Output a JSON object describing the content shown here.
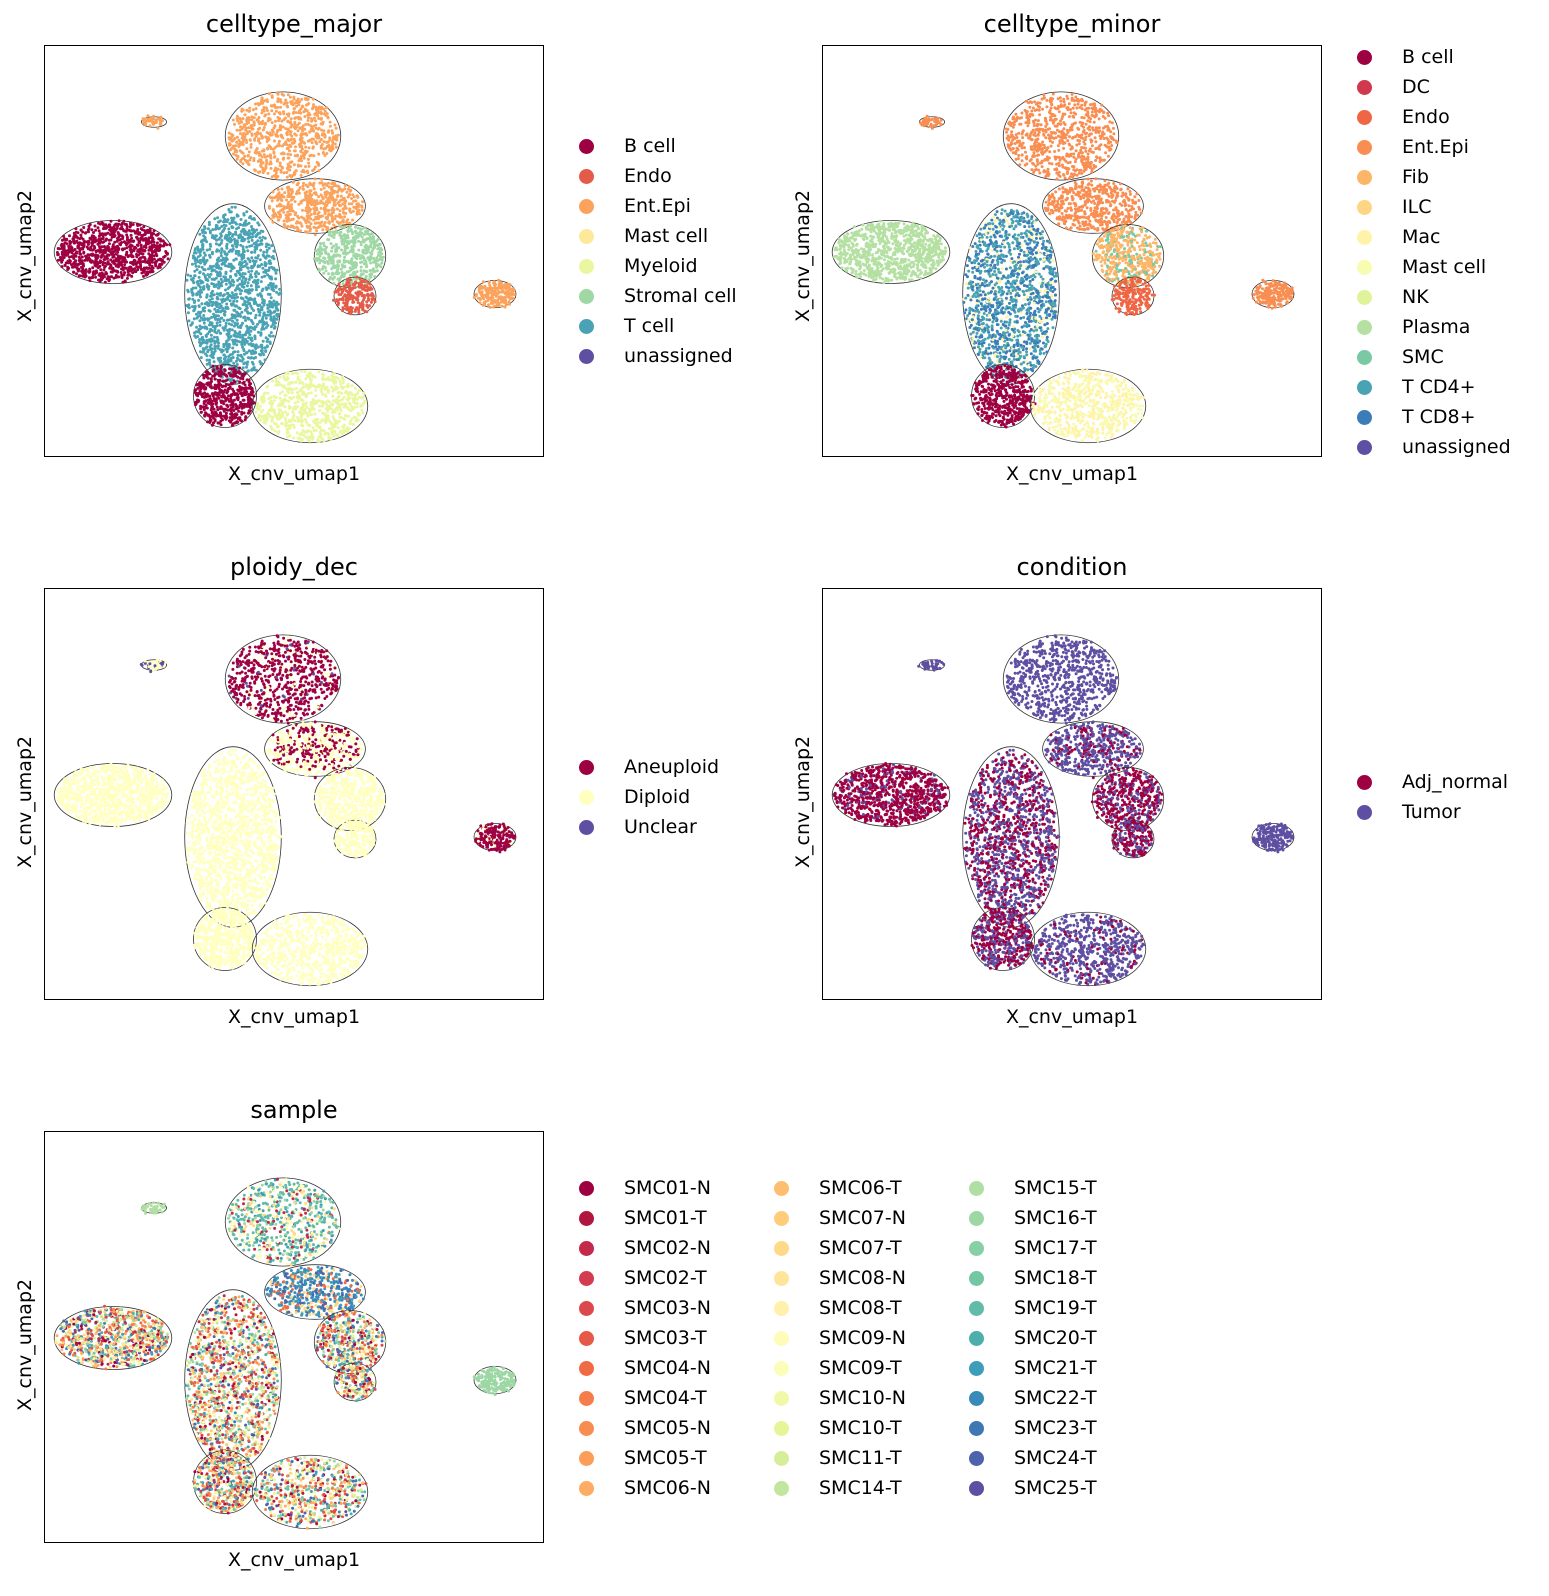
{
  "panels": [
    {
      "title": "celltype_major",
      "xlabel": "X_cnv_umap1",
      "ylabel": "X_cnv_umap2",
      "legend": [
        {
          "label": "B cell",
          "color": "#9e0142"
        },
        {
          "label": "Endo",
          "color": "#e45c49"
        },
        {
          "label": "Ent.Epi",
          "color": "#fba35c"
        },
        {
          "label": "Mast cell",
          "color": "#fde999"
        },
        {
          "label": "Myeloid",
          "color": "#eaf79e"
        },
        {
          "label": "Stromal cell",
          "color": "#9fd8a4"
        },
        {
          "label": "T cell",
          "color": "#4aa3b4"
        },
        {
          "label": "unassigned",
          "color": "#5e4fa2"
        }
      ]
    },
    {
      "title": "celltype_minor",
      "xlabel": "X_cnv_umap1",
      "ylabel": "X_cnv_umap2",
      "legend": [
        {
          "label": "B cell",
          "color": "#9e0142"
        },
        {
          "label": "DC",
          "color": "#d0384e"
        },
        {
          "label": "Endo",
          "color": "#ef6645"
        },
        {
          "label": "Ent.Epi",
          "color": "#f98e52"
        },
        {
          "label": "Fib",
          "color": "#fdb567"
        },
        {
          "label": "ILC",
          "color": "#fed683"
        },
        {
          "label": "Mac",
          "color": "#fff3aa"
        },
        {
          "label": "Mast cell",
          "color": "#f7fcb1"
        },
        {
          "label": "NK",
          "color": "#e0f29a"
        },
        {
          "label": "Plasma",
          "color": "#b4e0a2"
        },
        {
          "label": "SMC",
          "color": "#79c9a5"
        },
        {
          "label": "T CD4+",
          "color": "#4aa3b2"
        },
        {
          "label": "T CD8+",
          "color": "#3b7cb9"
        },
        {
          "label": "unassigned",
          "color": "#5e4fa2"
        }
      ]
    },
    {
      "title": "ploidy_dec",
      "xlabel": "X_cnv_umap1",
      "ylabel": "X_cnv_umap2",
      "legend": [
        {
          "label": "Aneuploid",
          "color": "#9e0142"
        },
        {
          "label": "Diploid",
          "color": "#ffffbf"
        },
        {
          "label": "Unclear",
          "color": "#5e4fa2"
        }
      ]
    },
    {
      "title": "condition",
      "xlabel": "X_cnv_umap1",
      "ylabel": "X_cnv_umap2",
      "legend": [
        {
          "label": "Adj_normal",
          "color": "#9e0142"
        },
        {
          "label": "Tumor",
          "color": "#5e4fa2"
        }
      ]
    },
    {
      "title": "sample",
      "xlabel": "X_cnv_umap1",
      "ylabel": "X_cnv_umap2",
      "legend": [
        {
          "label": "SMC01-N",
          "color": "#9e0142"
        },
        {
          "label": "SMC01-T",
          "color": "#b0173f"
        },
        {
          "label": "SMC02-N",
          "color": "#c2294a"
        },
        {
          "label": "SMC02-T",
          "color": "#d33c4e"
        },
        {
          "label": "SMC03-N",
          "color": "#dc494c"
        },
        {
          "label": "SMC03-T",
          "color": "#e65948"
        },
        {
          "label": "SMC04-N",
          "color": "#f06b45"
        },
        {
          "label": "SMC04-T",
          "color": "#f57d4a"
        },
        {
          "label": "SMC05-N",
          "color": "#f88d52"
        },
        {
          "label": "SMC05-T",
          "color": "#fb9e5a"
        },
        {
          "label": "SMC06-N",
          "color": "#fdad63"
        },
        {
          "label": "SMC06-T",
          "color": "#fdbe6f"
        },
        {
          "label": "SMC07-N",
          "color": "#fecc7b"
        },
        {
          "label": "SMC07-T",
          "color": "#fed98a"
        },
        {
          "label": "SMC08-N",
          "color": "#fee59a"
        },
        {
          "label": "SMC08-T",
          "color": "#fff0ab"
        },
        {
          "label": "SMC09-N",
          "color": "#fffbb9"
        },
        {
          "label": "SMC09-T",
          "color": "#fbfdb9"
        },
        {
          "label": "SMC10-N",
          "color": "#f1f9a9"
        },
        {
          "label": "SMC10-T",
          "color": "#e6f598"
        },
        {
          "label": "SMC11-T",
          "color": "#d6ee9b"
        },
        {
          "label": "SMC14-T",
          "color": "#c3e69f"
        },
        {
          "label": "SMC15-T",
          "color": "#b0dfa3"
        },
        {
          "label": "SMC16-T",
          "color": "#9cd7a4"
        },
        {
          "label": "SMC17-T",
          "color": "#87cfa4"
        },
        {
          "label": "SMC18-T",
          "color": "#73c7a5"
        },
        {
          "label": "SMC19-T",
          "color": "#61bba8"
        },
        {
          "label": "SMC20-T",
          "color": "#4eaeab"
        },
        {
          "label": "SMC21-T",
          "color": "#3e9dba"
        },
        {
          "label": "SMC22-T",
          "color": "#388ab8"
        },
        {
          "label": "SMC23-T",
          "color": "#3f76b4"
        },
        {
          "label": "SMC24-T",
          "color": "#4d63ab"
        },
        {
          "label": "SMC25-T",
          "color": "#5e4fa2"
        }
      ]
    }
  ],
  "chart_data": [
    {
      "type": "scatter",
      "title": "celltype_major",
      "xlabel": "X_cnv_umap1",
      "ylabel": "X_cnv_umap2",
      "ticks": "none",
      "legend_placement": "right",
      "categories": [
        "B cell",
        "Endo",
        "Ent.Epi",
        "Mast cell",
        "Myeloid",
        "Stromal cell",
        "T cell",
        "unassigned"
      ]
    },
    {
      "type": "scatter",
      "title": "celltype_minor",
      "xlabel": "X_cnv_umap1",
      "ylabel": "X_cnv_umap2",
      "ticks": "none",
      "legend_placement": "right",
      "categories": [
        "B cell",
        "DC",
        "Endo",
        "Ent.Epi",
        "Fib",
        "ILC",
        "Mac",
        "Mast cell",
        "NK",
        "Plasma",
        "SMC",
        "T CD4+",
        "T CD8+",
        "unassigned"
      ]
    },
    {
      "type": "scatter",
      "title": "ploidy_dec",
      "xlabel": "X_cnv_umap1",
      "ylabel": "X_cnv_umap2",
      "ticks": "none",
      "legend_placement": "right",
      "categories": [
        "Aneuploid",
        "Diploid",
        "Unclear"
      ]
    },
    {
      "type": "scatter",
      "title": "condition",
      "xlabel": "X_cnv_umap1",
      "ylabel": "X_cnv_umap2",
      "ticks": "none",
      "legend_placement": "right",
      "categories": [
        "Adj_normal",
        "Tumor"
      ]
    },
    {
      "type": "scatter",
      "title": "sample",
      "xlabel": "X_cnv_umap1",
      "ylabel": "X_cnv_umap2",
      "ticks": "none",
      "legend_placement": "right",
      "categories": [
        "SMC01-N",
        "SMC01-T",
        "SMC02-N",
        "SMC02-T",
        "SMC03-N",
        "SMC03-T",
        "SMC04-N",
        "SMC04-T",
        "SMC05-N",
        "SMC05-T",
        "SMC06-N",
        "SMC06-T",
        "SMC07-N",
        "SMC07-T",
        "SMC08-N",
        "SMC08-T",
        "SMC09-N",
        "SMC09-T",
        "SMC10-N",
        "SMC10-T",
        "SMC11-T",
        "SMC14-T",
        "SMC15-T",
        "SMC16-T",
        "SMC17-T",
        "SMC18-T",
        "SMC19-T",
        "SMC20-T",
        "SMC21-T",
        "SMC22-T",
        "SMC23-T",
        "SMC24-T",
        "SMC25-T"
      ]
    }
  ]
}
